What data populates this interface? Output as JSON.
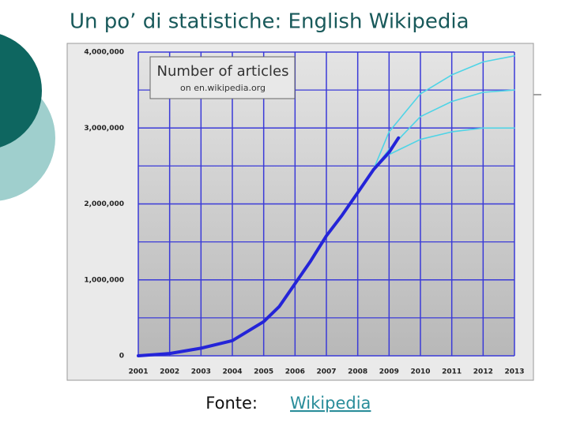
{
  "slide": {
    "title": "Un po’ di statistiche: English Wikipedia",
    "caption": {
      "prefix": "Fonte:",
      "link": "Wikipedia"
    }
  },
  "chart_data": {
    "type": "line",
    "title": "Number of articles",
    "subtitle": "on en.wikipedia.org",
    "xlim": [
      2001,
      2013
    ],
    "xticks": [
      2001,
      2002,
      2003,
      2004,
      2005,
      2006,
      2007,
      2008,
      2009,
      2010,
      2011,
      2012,
      2013
    ],
    "ylim": [
      0,
      4000000
    ],
    "yticks": [
      0,
      {
        "value": 1000000,
        "label": "1,000,000"
      },
      {
        "value": 2000000,
        "label": "2,000,000"
      },
      {
        "value": 3000000,
        "label": "3,000,000"
      },
      {
        "value": 4000000,
        "label": "4,000,000"
      }
    ],
    "yminor_ticks": [
      500000,
      1500000,
      2500000,
      3500000
    ],
    "grid": true,
    "grid_color": "#3a3ad8",
    "series": [
      {
        "color": "#4fd4e6",
        "x": [
          2008.5,
          2009,
          2010,
          2011,
          2012,
          2013
        ],
        "values": [
          2450000,
          2950000,
          3450000,
          3700000,
          3870000,
          3950000
        ]
      },
      {
        "color": "#4fd4e6",
        "x": [
          2008.5,
          2009,
          2010,
          2011,
          2012,
          2013
        ],
        "values": [
          2450000,
          2720000,
          3150000,
          3350000,
          3470000,
          3500000
        ]
      },
      {
        "color": "#4fd4e6",
        "x": [
          2008.5,
          2009,
          2010,
          2011,
          2012,
          2013
        ],
        "values": [
          2450000,
          2650000,
          2850000,
          2950000,
          3000000,
          3000000
        ]
      },
      {
        "color": "#2424d8",
        "x": [
          2001,
          2002,
          2003,
          2004,
          2005,
          2005.5,
          2006,
          2006.5,
          2007,
          2007.5,
          2008,
          2008.5,
          2009,
          2009.3
        ],
        "values": [
          0,
          30000,
          100000,
          200000,
          450000,
          650000,
          950000,
          1250000,
          1580000,
          1850000,
          2150000,
          2450000,
          2680000,
          2870000
        ]
      }
    ]
  }
}
